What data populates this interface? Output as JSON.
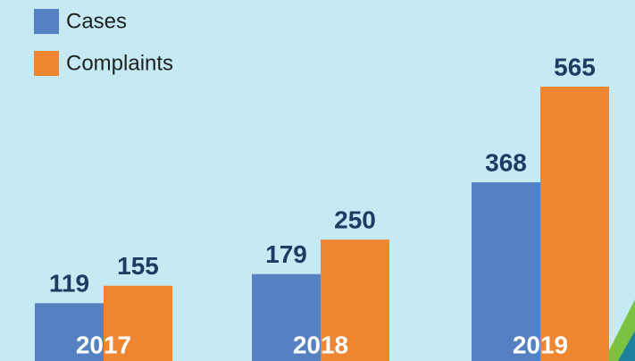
{
  "chart_data": {
    "type": "bar",
    "categories": [
      "2017",
      "2018",
      "2019"
    ],
    "series": [
      {
        "name": "Cases",
        "color": "#5580c1",
        "values": [
          119,
          179,
          368
        ]
      },
      {
        "name": "Complaints",
        "color": "#ef8632",
        "values": [
          155,
          250,
          565
        ]
      }
    ]
  }
}
